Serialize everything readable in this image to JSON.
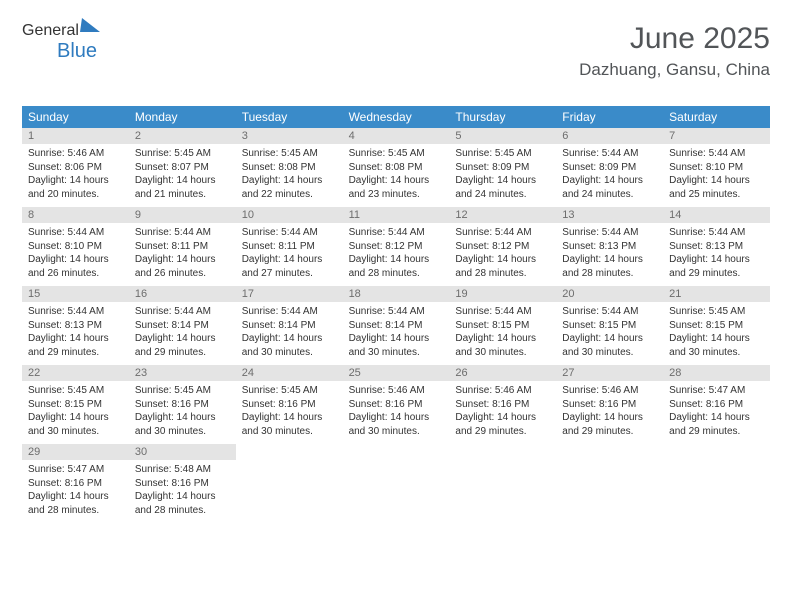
{
  "brand": {
    "text1": "General",
    "text2": "Blue"
  },
  "header": {
    "month": "June 2025",
    "location": "Dazhuang, Gansu, China"
  },
  "colors": {
    "header_bar": "#3a8bc9",
    "daynum_bg": "#e4e4e4",
    "text": "#333333",
    "title": "#525558",
    "brand_gray": "#6a6e6f",
    "brand_blue": "#2f7bbf"
  },
  "day_names": [
    "Sunday",
    "Monday",
    "Tuesday",
    "Wednesday",
    "Thursday",
    "Friday",
    "Saturday"
  ],
  "weeks": [
    {
      "nums": [
        "1",
        "2",
        "3",
        "4",
        "5",
        "6",
        "7"
      ],
      "cells": [
        {
          "sunrise": "5:46 AM",
          "sunset": "8:06 PM",
          "dl_h": "14",
          "dl_m": "20"
        },
        {
          "sunrise": "5:45 AM",
          "sunset": "8:07 PM",
          "dl_h": "14",
          "dl_m": "21"
        },
        {
          "sunrise": "5:45 AM",
          "sunset": "8:08 PM",
          "dl_h": "14",
          "dl_m": "22"
        },
        {
          "sunrise": "5:45 AM",
          "sunset": "8:08 PM",
          "dl_h": "14",
          "dl_m": "23"
        },
        {
          "sunrise": "5:45 AM",
          "sunset": "8:09 PM",
          "dl_h": "14",
          "dl_m": "24"
        },
        {
          "sunrise": "5:44 AM",
          "sunset": "8:09 PM",
          "dl_h": "14",
          "dl_m": "24"
        },
        {
          "sunrise": "5:44 AM",
          "sunset": "8:10 PM",
          "dl_h": "14",
          "dl_m": "25"
        }
      ]
    },
    {
      "nums": [
        "8",
        "9",
        "10",
        "11",
        "12",
        "13",
        "14"
      ],
      "cells": [
        {
          "sunrise": "5:44 AM",
          "sunset": "8:10 PM",
          "dl_h": "14",
          "dl_m": "26"
        },
        {
          "sunrise": "5:44 AM",
          "sunset": "8:11 PM",
          "dl_h": "14",
          "dl_m": "26"
        },
        {
          "sunrise": "5:44 AM",
          "sunset": "8:11 PM",
          "dl_h": "14",
          "dl_m": "27"
        },
        {
          "sunrise": "5:44 AM",
          "sunset": "8:12 PM",
          "dl_h": "14",
          "dl_m": "28"
        },
        {
          "sunrise": "5:44 AM",
          "sunset": "8:12 PM",
          "dl_h": "14",
          "dl_m": "28"
        },
        {
          "sunrise": "5:44 AM",
          "sunset": "8:13 PM",
          "dl_h": "14",
          "dl_m": "28"
        },
        {
          "sunrise": "5:44 AM",
          "sunset": "8:13 PM",
          "dl_h": "14",
          "dl_m": "29"
        }
      ]
    },
    {
      "nums": [
        "15",
        "16",
        "17",
        "18",
        "19",
        "20",
        "21"
      ],
      "cells": [
        {
          "sunrise": "5:44 AM",
          "sunset": "8:13 PM",
          "dl_h": "14",
          "dl_m": "29"
        },
        {
          "sunrise": "5:44 AM",
          "sunset": "8:14 PM",
          "dl_h": "14",
          "dl_m": "29"
        },
        {
          "sunrise": "5:44 AM",
          "sunset": "8:14 PM",
          "dl_h": "14",
          "dl_m": "30"
        },
        {
          "sunrise": "5:44 AM",
          "sunset": "8:14 PM",
          "dl_h": "14",
          "dl_m": "30"
        },
        {
          "sunrise": "5:44 AM",
          "sunset": "8:15 PM",
          "dl_h": "14",
          "dl_m": "30"
        },
        {
          "sunrise": "5:44 AM",
          "sunset": "8:15 PM",
          "dl_h": "14",
          "dl_m": "30"
        },
        {
          "sunrise": "5:45 AM",
          "sunset": "8:15 PM",
          "dl_h": "14",
          "dl_m": "30"
        }
      ]
    },
    {
      "nums": [
        "22",
        "23",
        "24",
        "25",
        "26",
        "27",
        "28"
      ],
      "cells": [
        {
          "sunrise": "5:45 AM",
          "sunset": "8:15 PM",
          "dl_h": "14",
          "dl_m": "30"
        },
        {
          "sunrise": "5:45 AM",
          "sunset": "8:16 PM",
          "dl_h": "14",
          "dl_m": "30"
        },
        {
          "sunrise": "5:45 AM",
          "sunset": "8:16 PM",
          "dl_h": "14",
          "dl_m": "30"
        },
        {
          "sunrise": "5:46 AM",
          "sunset": "8:16 PM",
          "dl_h": "14",
          "dl_m": "30"
        },
        {
          "sunrise": "5:46 AM",
          "sunset": "8:16 PM",
          "dl_h": "14",
          "dl_m": "29"
        },
        {
          "sunrise": "5:46 AM",
          "sunset": "8:16 PM",
          "dl_h": "14",
          "dl_m": "29"
        },
        {
          "sunrise": "5:47 AM",
          "sunset": "8:16 PM",
          "dl_h": "14",
          "dl_m": "29"
        }
      ]
    },
    {
      "nums": [
        "29",
        "30",
        "",
        "",
        "",
        "",
        ""
      ],
      "cells": [
        {
          "sunrise": "5:47 AM",
          "sunset": "8:16 PM",
          "dl_h": "14",
          "dl_m": "28"
        },
        {
          "sunrise": "5:48 AM",
          "sunset": "8:16 PM",
          "dl_h": "14",
          "dl_m": "28"
        },
        null,
        null,
        null,
        null,
        null
      ]
    }
  ]
}
